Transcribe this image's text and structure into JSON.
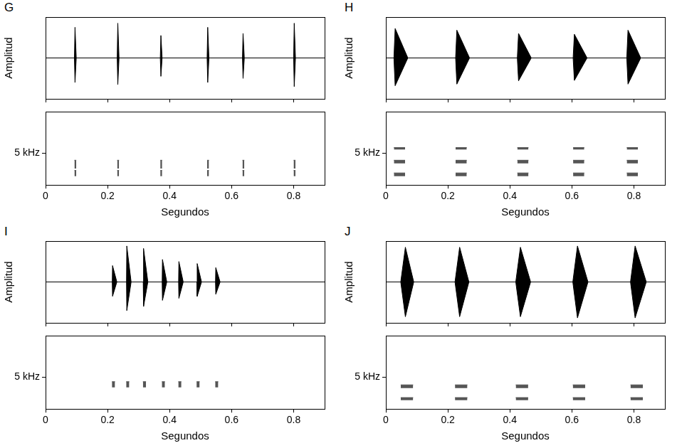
{
  "chart_data": [
    {
      "title": "G",
      "type": "area",
      "y_label": "Amplitud",
      "xlim": [
        0,
        0.9
      ],
      "xticks": [
        0,
        0.2,
        0.4,
        0.6,
        0.8
      ],
      "ylim": [
        -1,
        1
      ],
      "tick_labels": false,
      "grid": false,
      "color": "#000000",
      "baseline": 0,
      "pulses": [
        {
          "start": 0.093,
          "peak": 0.095,
          "end": 0.099,
          "high": 0.75,
          "low": -0.6
        },
        {
          "start": 0.231,
          "peak": 0.233,
          "end": 0.237,
          "high": 0.85,
          "low": -0.65
        },
        {
          "start": 0.37,
          "peak": 0.372,
          "end": 0.376,
          "high": 0.55,
          "low": -0.45
        },
        {
          "start": 0.521,
          "peak": 0.523,
          "end": 0.527,
          "high": 0.75,
          "low": -0.6
        },
        {
          "start": 0.635,
          "peak": 0.637,
          "end": 0.641,
          "high": 0.6,
          "low": -0.5
        },
        {
          "start": 0.8,
          "peak": 0.802,
          "end": 0.806,
          "high": 0.85,
          "low": -0.7
        }
      ]
    },
    {
      "type": "range",
      "x_label": "Segundos",
      "xlim": [
        0,
        0.9
      ],
      "xticks": [
        0,
        0.2,
        0.4,
        0.6,
        0.8
      ],
      "ylim": [
        0,
        11.5
      ],
      "yticks": [
        {
          "value": 5,
          "label": "5 kHz"
        }
      ],
      "grid": false,
      "color": "#555555",
      "pulses": [
        {
          "start": 0.093,
          "end": 0.099
        },
        {
          "start": 0.231,
          "end": 0.237
        },
        {
          "start": 0.37,
          "end": 0.376
        },
        {
          "start": 0.521,
          "end": 0.527
        },
        {
          "start": 0.635,
          "end": 0.641
        },
        {
          "start": 0.8,
          "end": 0.806
        }
      ],
      "bands": [
        {
          "low": 1.4,
          "high": 2.3
        },
        {
          "low": 2.6,
          "high": 3.9
        }
      ]
    },
    {
      "title": "H",
      "type": "area",
      "y_label": "Amplitud",
      "xlim": [
        0,
        0.9
      ],
      "xticks": [
        0,
        0.2,
        0.4,
        0.6,
        0.8
      ],
      "ylim": [
        -1,
        1
      ],
      "tick_labels": false,
      "grid": false,
      "color": "#000000",
      "baseline": 0,
      "pulses": [
        {
          "start": 0.026,
          "peak": 0.03,
          "end": 0.071,
          "high": 0.72,
          "low": -0.68
        },
        {
          "start": 0.225,
          "peak": 0.229,
          "end": 0.27,
          "high": 0.68,
          "low": -0.64
        },
        {
          "start": 0.424,
          "peak": 0.428,
          "end": 0.469,
          "high": 0.6,
          "low": -0.56
        },
        {
          "start": 0.604,
          "peak": 0.608,
          "end": 0.649,
          "high": 0.58,
          "low": -0.55
        },
        {
          "start": 0.777,
          "peak": 0.781,
          "end": 0.822,
          "high": 0.68,
          "low": -0.64
        }
      ]
    },
    {
      "type": "range",
      "x_label": "Segundos",
      "xlim": [
        0,
        0.9
      ],
      "xticks": [
        0,
        0.2,
        0.4,
        0.6,
        0.8
      ],
      "ylim": [
        0,
        11.5
      ],
      "yticks": [
        {
          "value": 5,
          "label": "5 kHz"
        }
      ],
      "grid": false,
      "color": "#555555",
      "pulses": [
        {
          "start": 0.026,
          "end": 0.062
        },
        {
          "start": 0.225,
          "end": 0.261
        },
        {
          "start": 0.424,
          "end": 0.46
        },
        {
          "start": 0.604,
          "end": 0.64
        },
        {
          "start": 0.777,
          "end": 0.813
        }
      ],
      "bands": [
        {
          "low": 1.4,
          "high": 1.9
        },
        {
          "low": 3.4,
          "high": 3.9
        },
        {
          "low": 5.6,
          "high": 5.9
        }
      ]
    },
    {
      "title": "I",
      "type": "area",
      "y_label": "Amplitud",
      "xlim": [
        0,
        0.9
      ],
      "xticks": [
        0,
        0.2,
        0.4,
        0.6,
        0.8
      ],
      "ylim": [
        -1,
        1
      ],
      "tick_labels": false,
      "grid": false,
      "color": "#000000",
      "baseline": 0,
      "pulses": [
        {
          "start": 0.215,
          "peak": 0.216,
          "end": 0.23,
          "high": 0.4,
          "low": -0.35
        },
        {
          "start": 0.261,
          "peak": 0.262,
          "end": 0.276,
          "high": 0.88,
          "low": -0.7
        },
        {
          "start": 0.315,
          "peak": 0.316,
          "end": 0.33,
          "high": 0.82,
          "low": -0.6
        },
        {
          "start": 0.376,
          "peak": 0.377,
          "end": 0.391,
          "high": 0.55,
          "low": -0.45
        },
        {
          "start": 0.429,
          "peak": 0.43,
          "end": 0.444,
          "high": 0.5,
          "low": -0.4
        },
        {
          "start": 0.488,
          "peak": 0.489,
          "end": 0.503,
          "high": 0.45,
          "low": -0.35
        },
        {
          "start": 0.548,
          "peak": 0.549,
          "end": 0.563,
          "high": 0.35,
          "low": -0.3
        }
      ]
    },
    {
      "type": "range",
      "x_label": "Segundos",
      "xlim": [
        0,
        0.9
      ],
      "xticks": [
        0,
        0.2,
        0.4,
        0.6,
        0.8
      ],
      "ylim": [
        0,
        11.5
      ],
      "yticks": [
        {
          "value": 5,
          "label": "5 kHz"
        }
      ],
      "grid": false,
      "color": "#555555",
      "pulses": [
        {
          "start": 0.214,
          "end": 0.224
        },
        {
          "start": 0.26,
          "end": 0.27
        },
        {
          "start": 0.314,
          "end": 0.324
        },
        {
          "start": 0.375,
          "end": 0.385
        },
        {
          "start": 0.428,
          "end": 0.438
        },
        {
          "start": 0.487,
          "end": 0.497
        },
        {
          "start": 0.547,
          "end": 0.557
        }
      ],
      "bands": [
        {
          "low": 3.4,
          "high": 4.3
        }
      ]
    },
    {
      "title": "J",
      "type": "area",
      "y_label": "Amplitud",
      "xlim": [
        0,
        0.9
      ],
      "xticks": [
        0,
        0.2,
        0.4,
        0.6,
        0.8
      ],
      "ylim": [
        -1,
        1
      ],
      "tick_labels": false,
      "grid": false,
      "color": "#000000",
      "baseline": 0,
      "pulses": [
        {
          "start": 0.048,
          "peak": 0.063,
          "end": 0.09,
          "high": 0.85,
          "low": -0.85
        },
        {
          "start": 0.223,
          "peak": 0.238,
          "end": 0.268,
          "high": 0.85,
          "low": -0.85
        },
        {
          "start": 0.419,
          "peak": 0.434,
          "end": 0.467,
          "high": 0.85,
          "low": -0.85
        },
        {
          "start": 0.603,
          "peak": 0.618,
          "end": 0.652,
          "high": 0.88,
          "low": -0.88
        },
        {
          "start": 0.789,
          "peak": 0.804,
          "end": 0.84,
          "high": 0.88,
          "low": -0.88
        }
      ]
    },
    {
      "type": "range",
      "x_label": "Segundos",
      "xlim": [
        0,
        0.9
      ],
      "xticks": [
        0,
        0.2,
        0.4,
        0.6,
        0.8
      ],
      "ylim": [
        0,
        11.5
      ],
      "yticks": [
        {
          "value": 5,
          "label": "5 kHz"
        }
      ],
      "grid": false,
      "color": "#555555",
      "pulses": [
        {
          "start": 0.048,
          "end": 0.088
        },
        {
          "start": 0.223,
          "end": 0.263
        },
        {
          "start": 0.419,
          "end": 0.459
        },
        {
          "start": 0.603,
          "end": 0.643
        },
        {
          "start": 0.789,
          "end": 0.829
        }
      ],
      "bands": [
        {
          "low": 1.4,
          "high": 1.8
        },
        {
          "low": 3.3,
          "high": 3.8
        }
      ]
    }
  ]
}
